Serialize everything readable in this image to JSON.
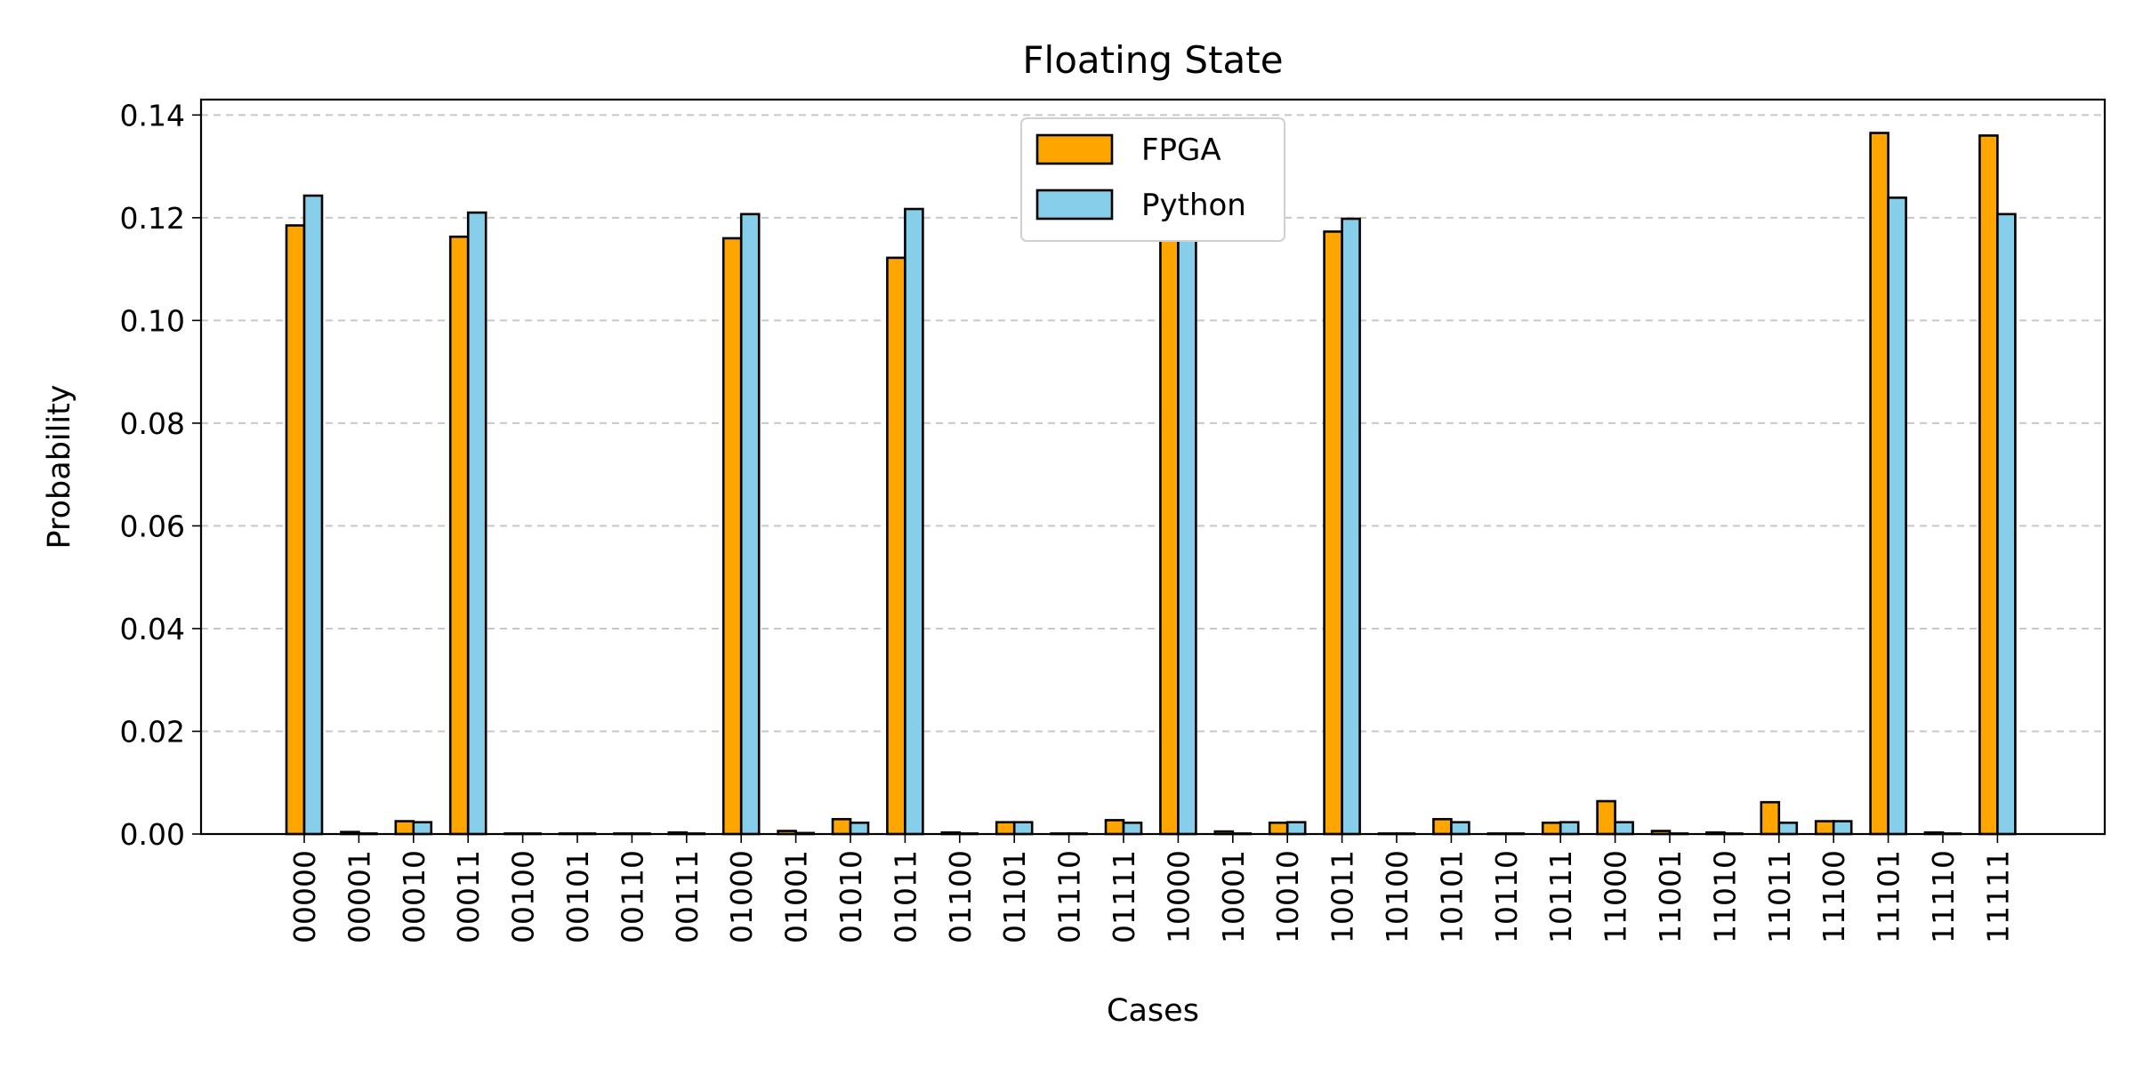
{
  "chart_data": {
    "type": "bar",
    "title": "Floating State",
    "xlabel": "Cases",
    "ylabel": "Probability",
    "ylim": [
      0,
      0.143
    ],
    "yticks": [
      "0.00",
      "0.02",
      "0.04",
      "0.06",
      "0.08",
      "0.10",
      "0.12",
      "0.14"
    ],
    "grid": "y-dashed",
    "legend_position": "top-center",
    "categories": [
      "00000",
      "00001",
      "00010",
      "00011",
      "00100",
      "00101",
      "00110",
      "00111",
      "01000",
      "01001",
      "01010",
      "01011",
      "01100",
      "01101",
      "01110",
      "01111",
      "10000",
      "10001",
      "10010",
      "10011",
      "10100",
      "10101",
      "10110",
      "10111",
      "11000",
      "11001",
      "11010",
      "11011",
      "11100",
      "11101",
      "11110",
      "11111"
    ],
    "series": [
      {
        "name": "FPGA",
        "color": "#ffa500",
        "values": [
          0.1185,
          0.0004,
          0.0025,
          0.1163,
          0.0001,
          0.0001,
          0.0001,
          0.0003,
          0.116,
          0.0006,
          0.0029,
          0.1122,
          0.0003,
          0.0023,
          0.0001,
          0.0027,
          0.1195,
          0.0005,
          0.0022,
          0.1173,
          0.0001,
          0.0029,
          0.0001,
          0.0022,
          0.0064,
          0.0006,
          0.0003,
          0.0062,
          0.0025,
          0.1365,
          0.0003,
          0.136
        ]
      },
      {
        "name": "Python",
        "color": "#87ceeb",
        "values": [
          0.1243,
          0.0001,
          0.0023,
          0.121,
          0.0001,
          0.0001,
          0.0001,
          0.0001,
          0.1207,
          0.0002,
          0.0022,
          0.1217,
          0.0001,
          0.0023,
          0.0001,
          0.0022,
          0.1264,
          0.0001,
          0.0023,
          0.1198,
          0.0001,
          0.0023,
          0.0001,
          0.0023,
          0.0023,
          0.0001,
          0.0001,
          0.0022,
          0.0025,
          0.1239,
          0.0001,
          0.1207
        ]
      }
    ]
  }
}
